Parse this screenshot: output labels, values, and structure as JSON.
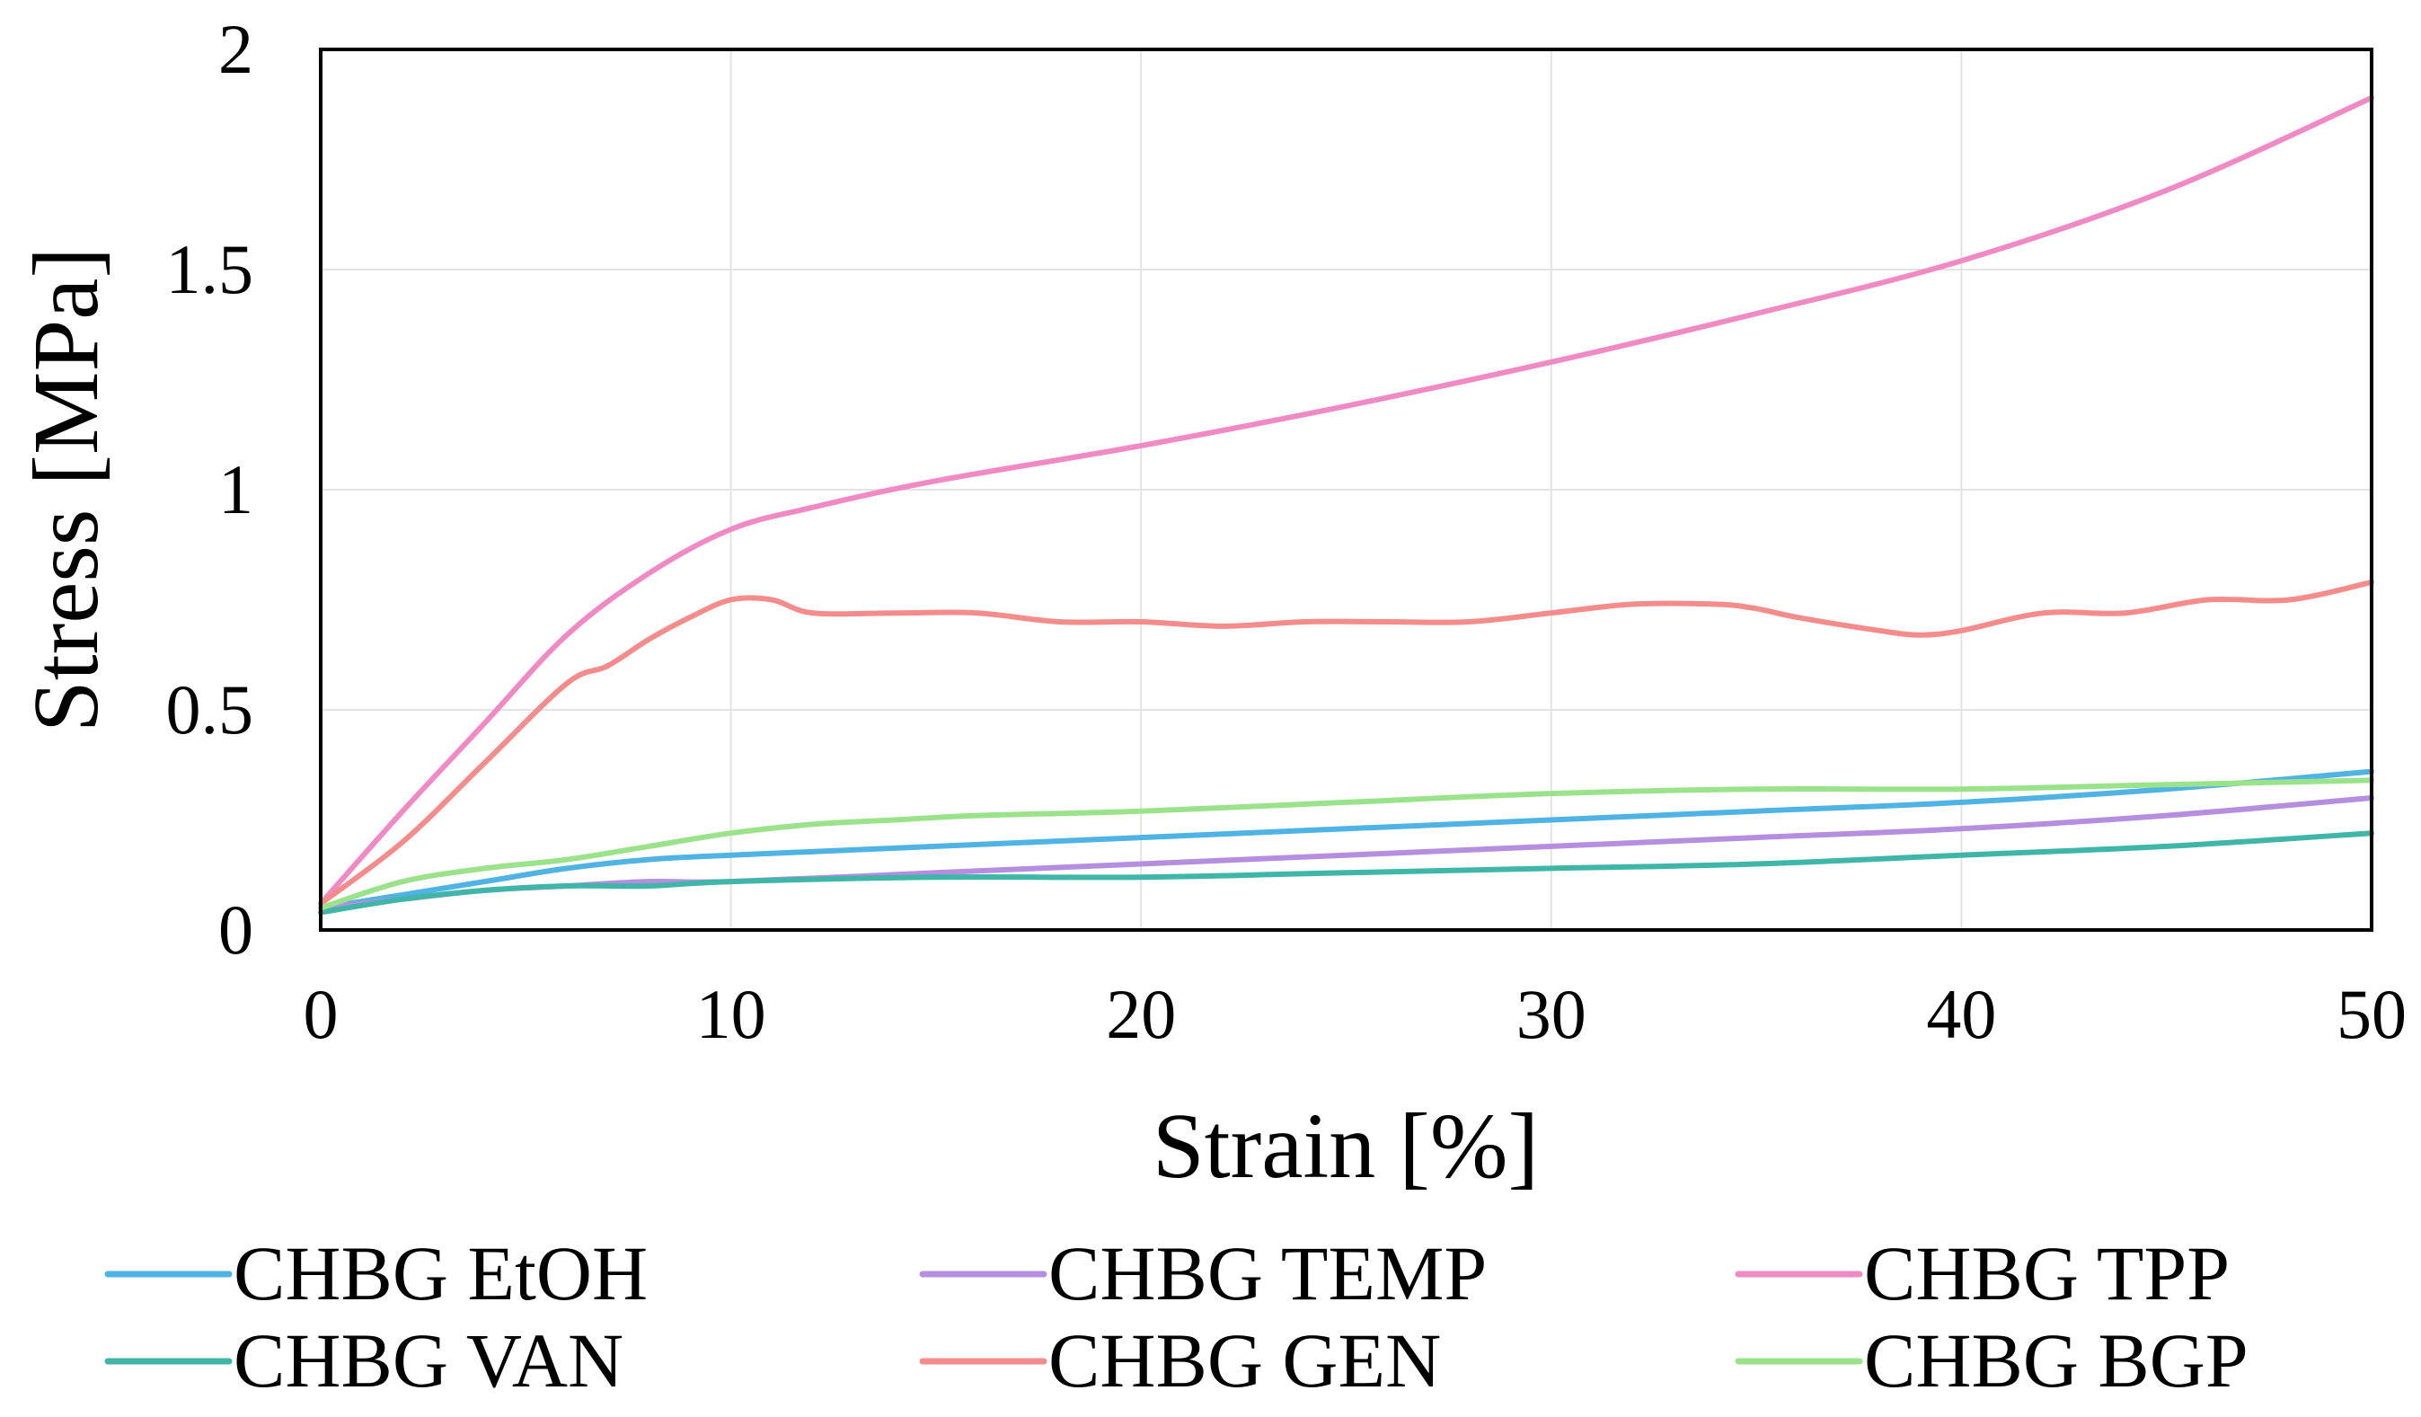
{
  "chart_data": {
    "type": "line",
    "title": "",
    "xlabel": "Strain [%]",
    "ylabel": "Stress [MPa]",
    "xlim": [
      0,
      50
    ],
    "ylim": [
      0,
      2
    ],
    "xticks": [
      0,
      10,
      20,
      30,
      40,
      50
    ],
    "xtick_labels": [
      "0",
      "10",
      "20",
      "30",
      "40",
      "50"
    ],
    "yticks": [
      0,
      0.5,
      1,
      1.5,
      2
    ],
    "ytick_labels": [
      "0",
      "0.5",
      "1",
      "1.5",
      "2"
    ],
    "grid": true,
    "legend_position": "bottom",
    "series": [
      {
        "name": "CHBG EtOH",
        "color": "#4fb3e3",
        "x": [
          0,
          2,
          4,
          6,
          8,
          10,
          15,
          20,
          25,
          30,
          35,
          40,
          45,
          50
        ],
        "y": [
          0.05,
          0.08,
          0.11,
          0.14,
          0.16,
          0.17,
          0.19,
          0.21,
          0.23,
          0.25,
          0.27,
          0.29,
          0.32,
          0.36
        ]
      },
      {
        "name": "CHBG TEMP",
        "color": "#b58ee0",
        "x": [
          0,
          2,
          4,
          6,
          8,
          10,
          15,
          20,
          25,
          30,
          35,
          40,
          45,
          50
        ],
        "y": [
          0.05,
          0.07,
          0.09,
          0.1,
          0.11,
          0.11,
          0.13,
          0.15,
          0.17,
          0.19,
          0.21,
          0.23,
          0.26,
          0.3
        ]
      },
      {
        "name": "CHBG TPP",
        "color": "#f08ac4",
        "x": [
          0,
          2,
          4,
          6,
          8,
          10,
          12,
          15,
          20,
          25,
          30,
          35,
          40,
          45,
          50
        ],
        "y": [
          0.06,
          0.27,
          0.47,
          0.67,
          0.81,
          0.91,
          0.96,
          1.02,
          1.1,
          1.19,
          1.29,
          1.4,
          1.52,
          1.68,
          1.89
        ]
      },
      {
        "name": "CHBG VAN",
        "color": "#3fb6a8",
        "x": [
          0,
          2,
          4,
          6,
          8,
          10,
          15,
          20,
          25,
          30,
          35,
          40,
          45,
          50
        ],
        "y": [
          0.04,
          0.07,
          0.09,
          0.1,
          0.1,
          0.11,
          0.12,
          0.12,
          0.13,
          0.14,
          0.15,
          0.17,
          0.19,
          0.22
        ]
      },
      {
        "name": "CHBG GEN",
        "color": "#f58c8c",
        "x": [
          0,
          2,
          4,
          6,
          7,
          8,
          9,
          10,
          11,
          12,
          14,
          16,
          18,
          20,
          22,
          24,
          26,
          28,
          30,
          32,
          34,
          35,
          36,
          38,
          39,
          40,
          42,
          44,
          46,
          48,
          50
        ],
        "y": [
          0.06,
          0.2,
          0.38,
          0.56,
          0.6,
          0.66,
          0.71,
          0.75,
          0.75,
          0.72,
          0.72,
          0.72,
          0.7,
          0.7,
          0.69,
          0.7,
          0.7,
          0.7,
          0.72,
          0.74,
          0.74,
          0.73,
          0.71,
          0.68,
          0.67,
          0.68,
          0.72,
          0.72,
          0.75,
          0.75,
          0.79
        ]
      },
      {
        "name": "CHBG BGP",
        "color": "#9be38b",
        "x": [
          0,
          2,
          4,
          6,
          8,
          10,
          12,
          14,
          16,
          20,
          25,
          30,
          35,
          40,
          45,
          50
        ],
        "y": [
          0.05,
          0.11,
          0.14,
          0.16,
          0.19,
          0.22,
          0.24,
          0.25,
          0.26,
          0.27,
          0.29,
          0.31,
          0.32,
          0.32,
          0.33,
          0.34
        ]
      }
    ]
  }
}
